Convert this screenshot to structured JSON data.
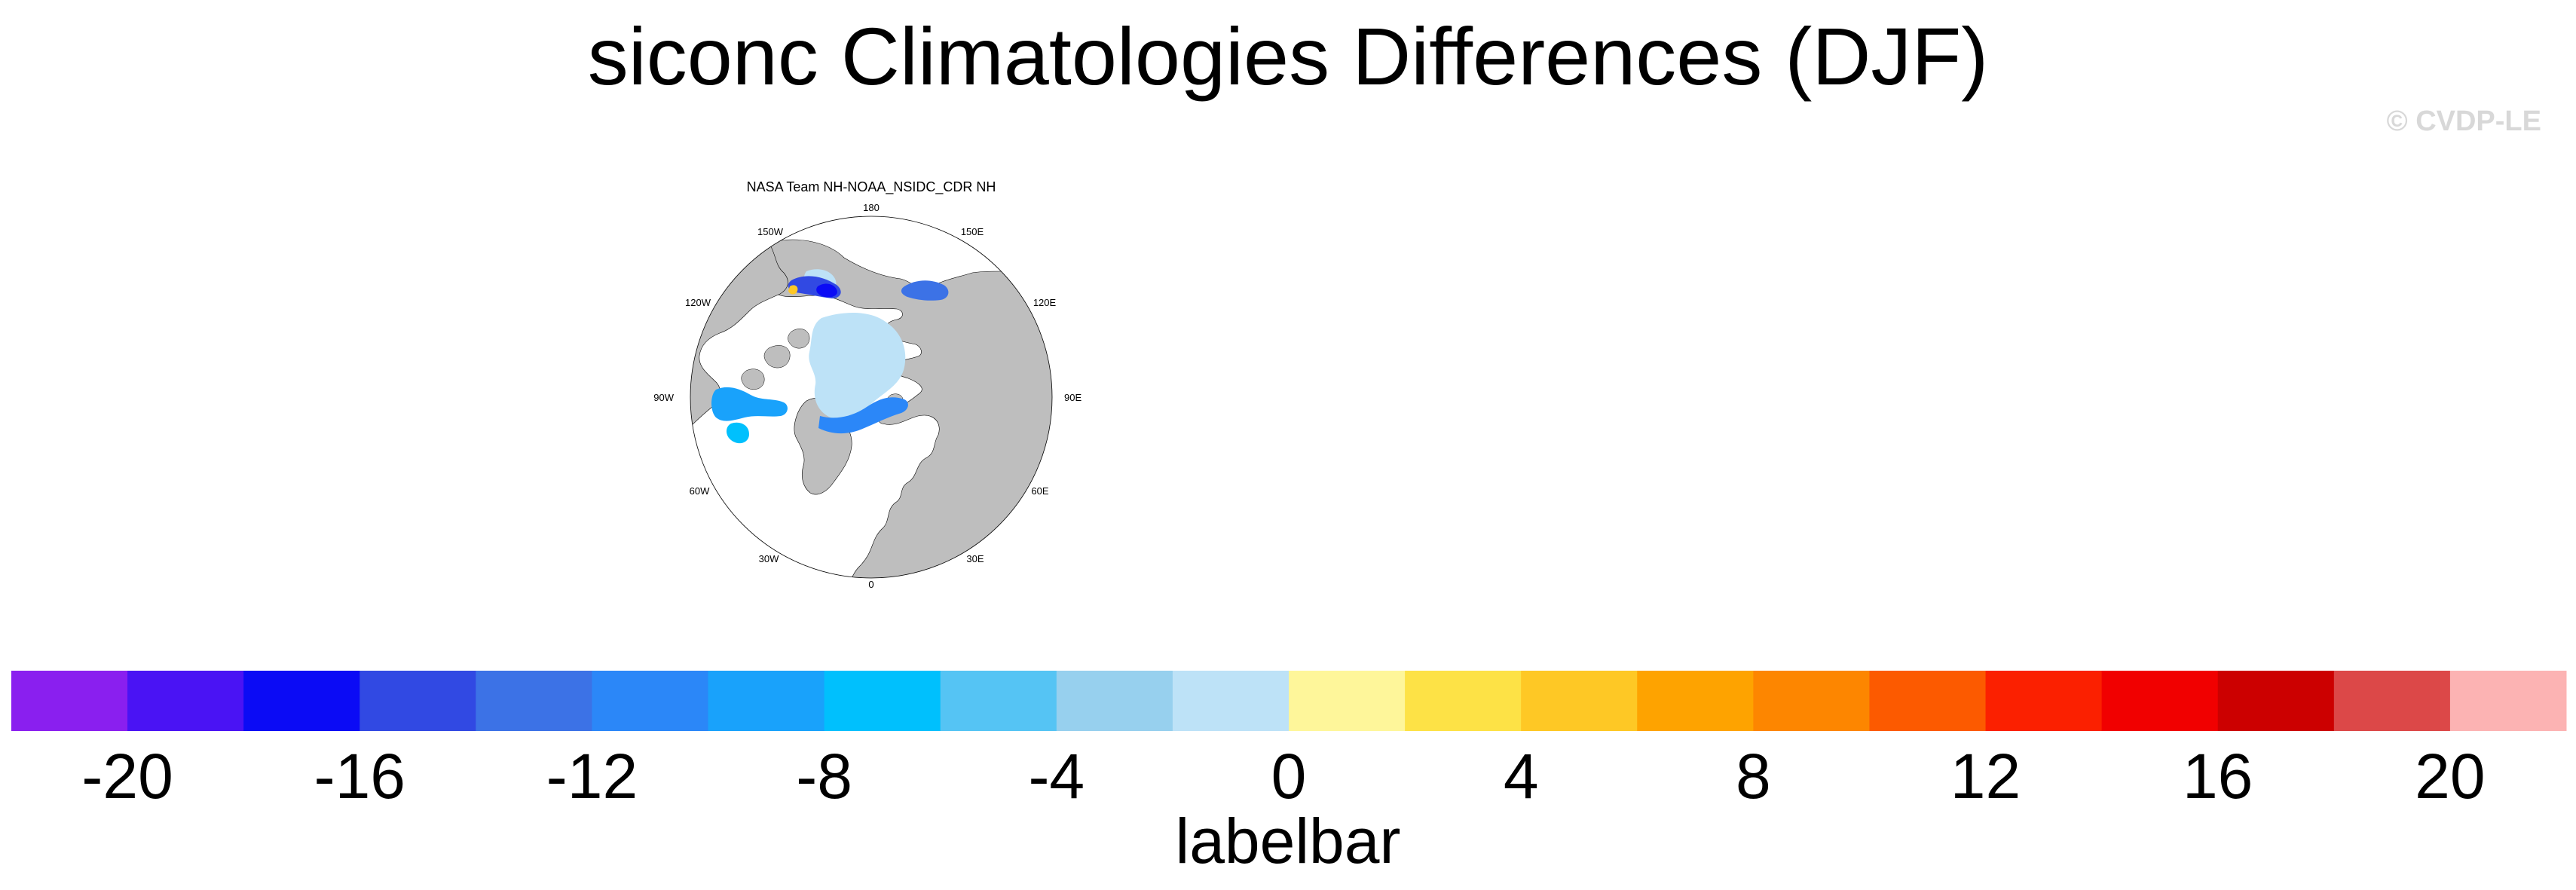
{
  "title": "siconc Climatologies Differences (DJF)",
  "copyright": "© CVDP-LE",
  "map_panel": {
    "title": "NASA Team NH-NOAA_NSIDC_CDR NH",
    "projection": "north-polar-stereographic",
    "longitude_labels": [
      "180",
      "150E",
      "120E",
      "90E",
      "60E",
      "30E",
      "0",
      "30W",
      "60W",
      "90W",
      "120W",
      "150W"
    ],
    "land_color": "#bebebe",
    "ocean_color": "#ffffff"
  },
  "colorbar": {
    "title": "labelbar",
    "tick_labels": [
      "-20",
      "-16",
      "-12",
      "-8",
      "-4",
      "0",
      "4",
      "8",
      "12",
      "16",
      "20"
    ],
    "colors": [
      "#8a1fef",
      "#4a13f4",
      "#0b0bf5",
      "#3149e3",
      "#3c72e6",
      "#2b87f8",
      "#19a2fb",
      "#00c0fd",
      "#55c4f4",
      "#97d0ee",
      "#bde2f7",
      "#fef69a",
      "#fde246",
      "#fec825",
      "#fea300",
      "#fd8600",
      "#fc5a00",
      "#fb2000",
      "#f10000",
      "#cc0000",
      "#dc4848",
      "#fcb3b3"
    ]
  }
}
